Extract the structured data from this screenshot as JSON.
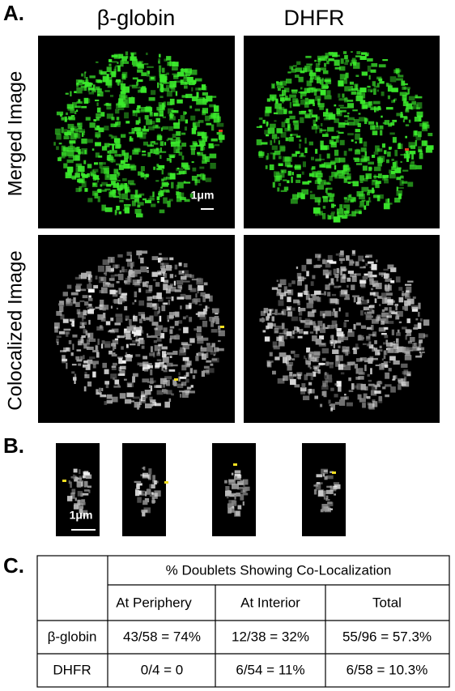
{
  "panel_a": {
    "label": "A.",
    "columns": [
      "β-globin",
      "DHFR"
    ],
    "rows": [
      "Merged Image",
      "Colocalized Image"
    ],
    "scale_bar": "1μm"
  },
  "panel_b": {
    "label": "B.",
    "scale_bar": "1μm"
  },
  "panel_c": {
    "label": "C.",
    "table": {
      "header": "% Doublets Showing Co-Localization",
      "columns": [
        "At Periphery",
        "At Interior",
        "Total"
      ],
      "rows": [
        [
          "β-globin",
          "43/58 = 74%",
          "12/38 = 32%",
          "55/96 = 57.3%"
        ],
        [
          "DHFR",
          "0/4 = 0",
          "6/54 = 11%",
          "6/58 = 10.3%"
        ]
      ]
    }
  }
}
